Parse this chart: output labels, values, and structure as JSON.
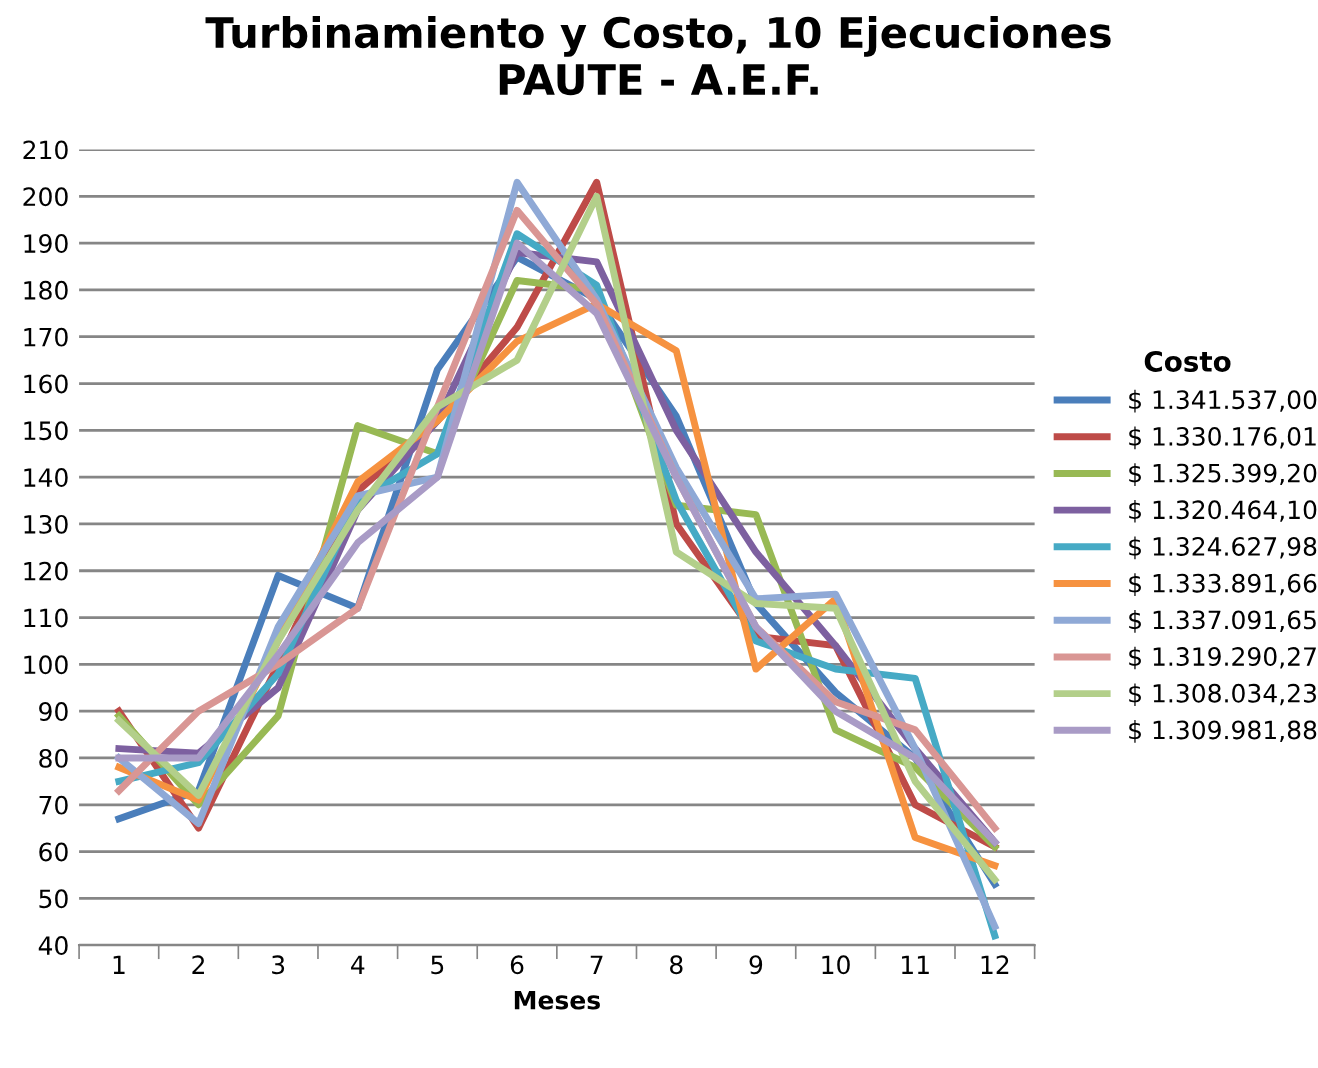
{
  "chart_data": {
    "type": "line",
    "title": "Turbinamiento y Costo, 10 Ejecuciones\nPAUTE - A.E.F.",
    "xlabel": "Meses",
    "legend_title": "Costo",
    "legend": "right",
    "grid": "y",
    "marker": "none",
    "line_style": "solid",
    "categories": [
      "1",
      "2",
      "3",
      "4",
      "5",
      "6",
      "7",
      "8",
      "9",
      "10",
      "11",
      "12"
    ],
    "ylim": [
      40,
      210
    ],
    "yticks": [
      40,
      50,
      60,
      70,
      80,
      90,
      100,
      110,
      120,
      130,
      140,
      150,
      160,
      170,
      180,
      190,
      200,
      210
    ],
    "series": [
      {
        "name": "$ 1.341.537,00",
        "color": "#4a7ebb",
        "values": [
          67,
          73,
          119,
          112,
          163,
          187,
          178,
          153,
          113,
          94,
          80,
          53
        ]
      },
      {
        "name": "$ 1.330.176,01",
        "color": "#be4b48",
        "values": [
          90,
          65,
          100,
          137,
          152,
          172,
          203,
          130,
          106,
          104,
          70,
          61
        ]
      },
      {
        "name": "$ 1.325.399,20",
        "color": "#98b954",
        "values": [
          89,
          70,
          89,
          151,
          145,
          182,
          180,
          134,
          132,
          86,
          78,
          61
        ]
      },
      {
        "name": "$ 1.320.464,10",
        "color": "#7d60a0",
        "values": [
          82,
          81,
          95,
          133,
          152,
          188,
          186,
          150,
          124,
          104,
          82,
          62
        ]
      },
      {
        "name": "$ 1.324.627,98",
        "color": "#46aac5",
        "values": [
          75,
          79,
          98,
          135,
          145,
          192,
          181,
          135,
          105,
          99,
          97,
          42
        ]
      },
      {
        "name": "$ 1.333.891,66",
        "color": "#f69240",
        "values": [
          78,
          71,
          105,
          139,
          152,
          169,
          177,
          167,
          99,
          114,
          63,
          57
        ]
      },
      {
        "name": "$ 1.337.091,65",
        "color": "#8fa9d6",
        "values": [
          80,
          66,
          108,
          136,
          140,
          203,
          178,
          142,
          114,
          115,
          82,
          44
        ]
      },
      {
        "name": "$ 1.319.290,27",
        "color": "#d99694",
        "values": [
          73,
          90,
          100,
          112,
          155,
          197,
          177,
          140,
          108,
          92,
          86,
          65
        ]
      },
      {
        "name": "$ 1.308.034,23",
        "color": "#b3cf8a",
        "values": [
          88,
          72,
          105,
          133,
          155,
          165,
          200,
          124,
          113,
          112,
          75,
          54
        ]
      },
      {
        "name": "$ 1.309.981,88",
        "color": "#a99bc6",
        "values": [
          80,
          80,
          102,
          126,
          140,
          190,
          175,
          140,
          108,
          90,
          80,
          62
        ]
      }
    ]
  }
}
